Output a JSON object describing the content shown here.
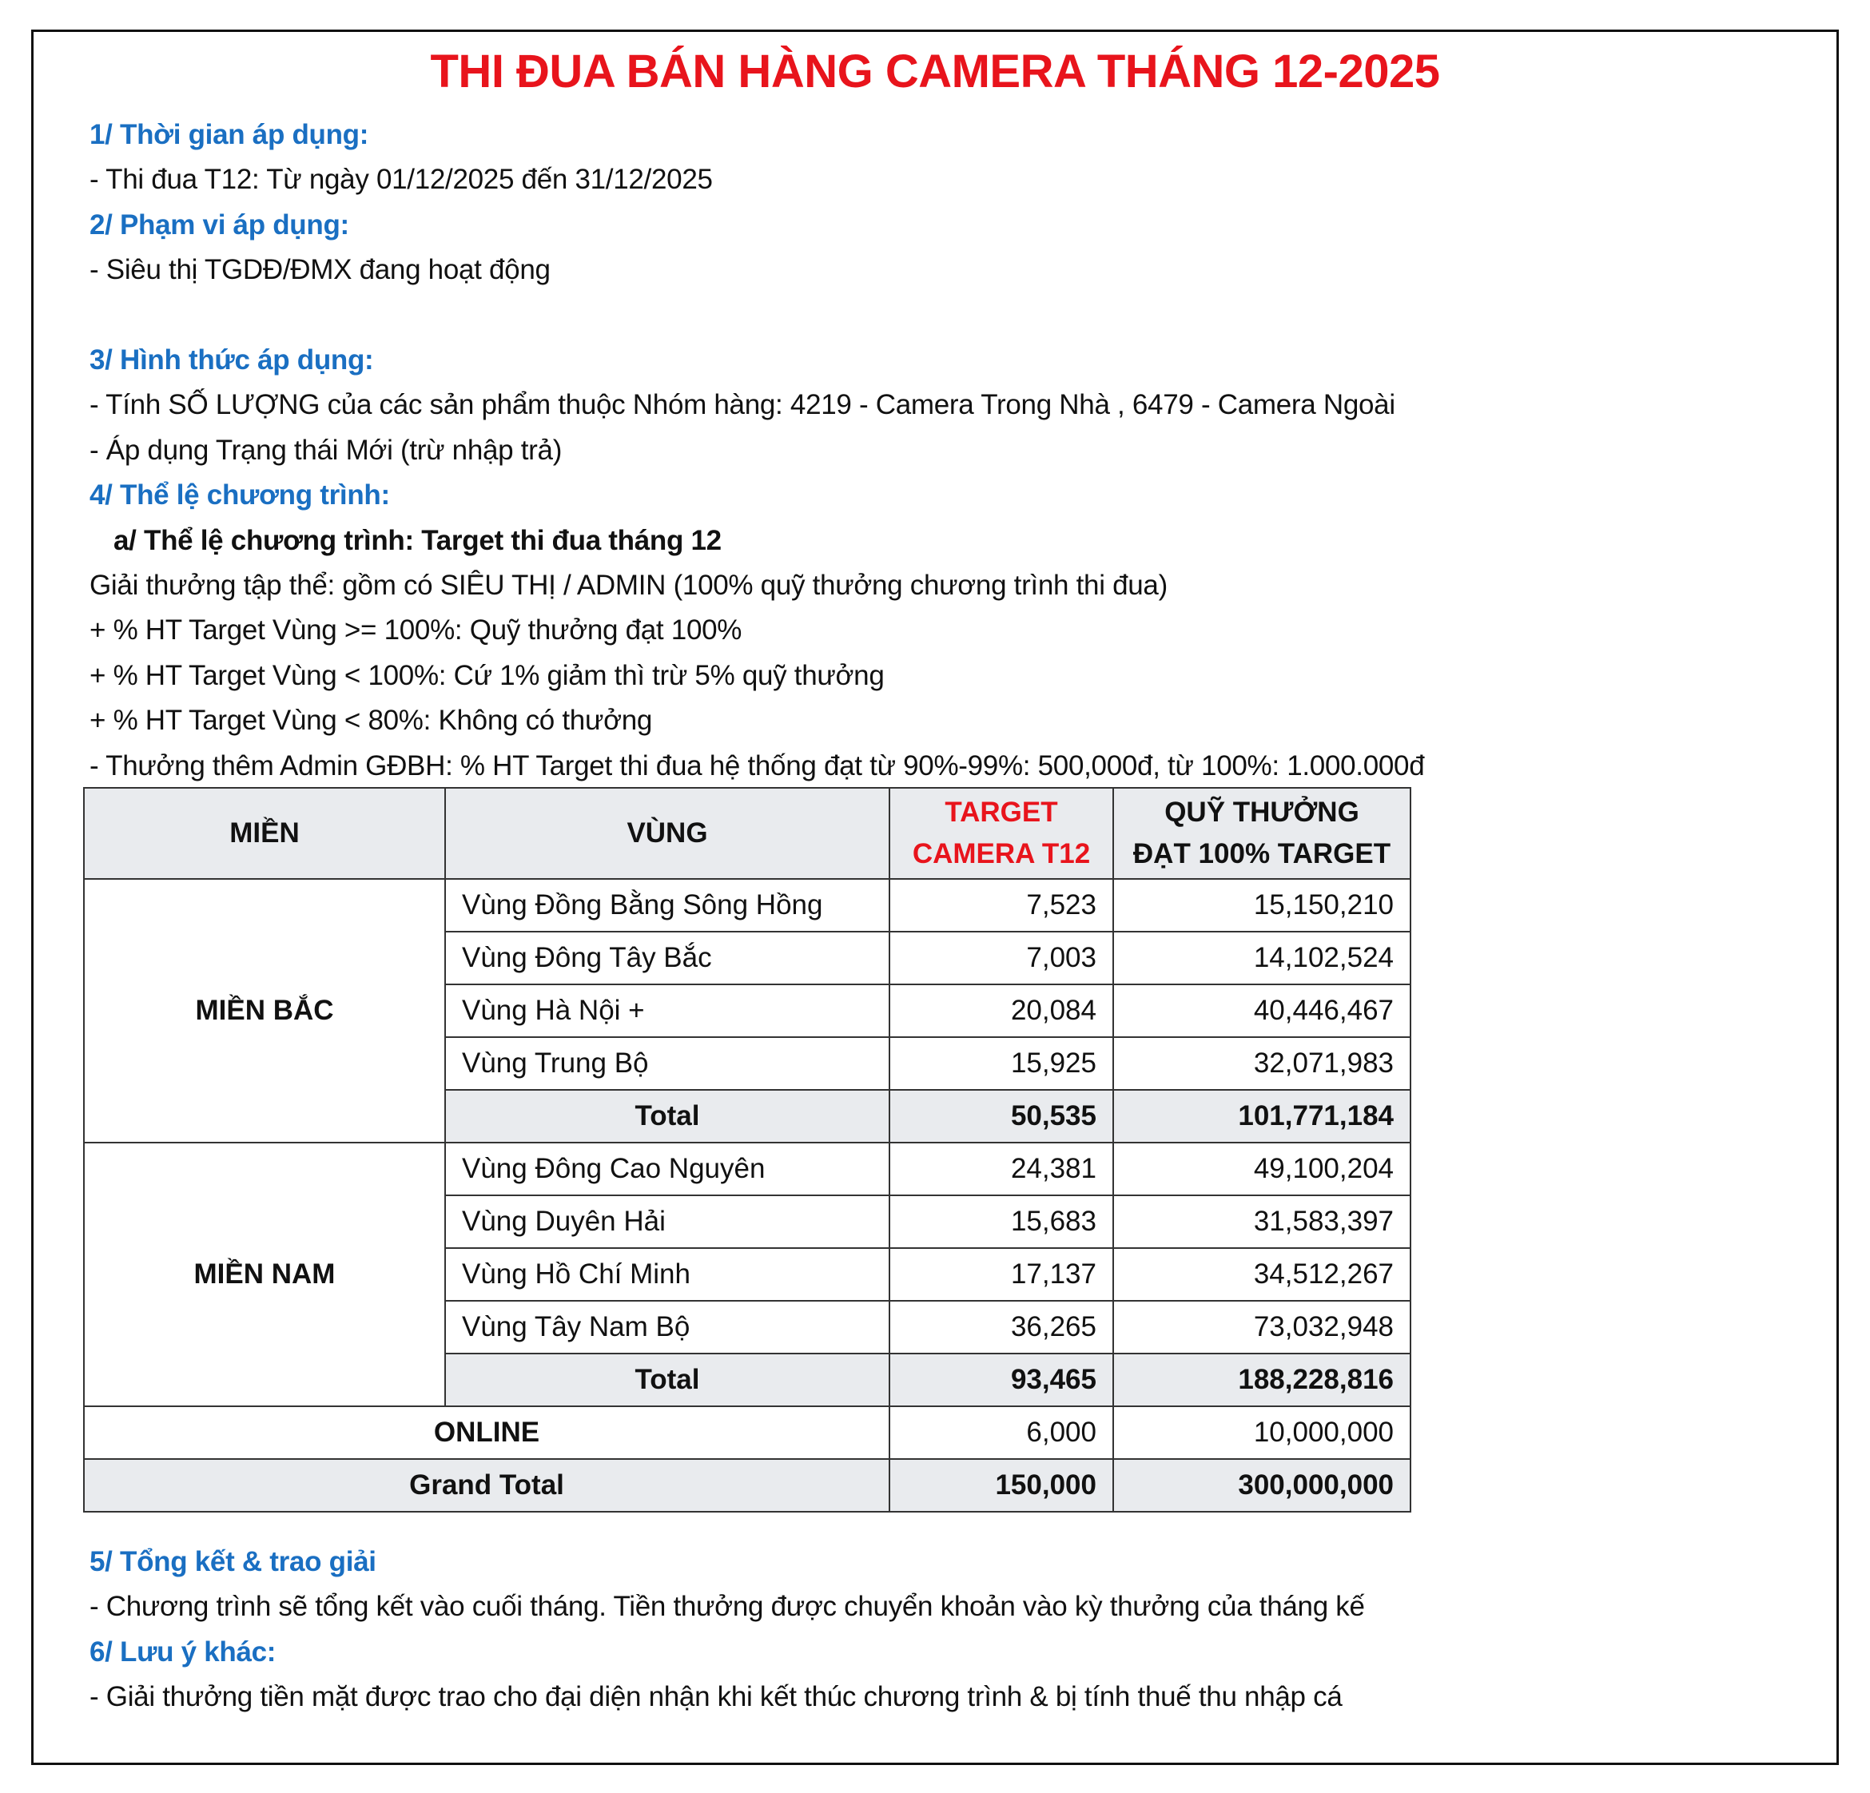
{
  "title": "THI ĐUA BÁN HÀNG CAMERA THÁNG 12-2025",
  "colors": {
    "title": "#e8141c",
    "heading": "#1a6fc2",
    "header_bg": "#e9ebee"
  },
  "top_lines": [
    {
      "type": "heading",
      "text": "1/ Thời gian áp dụng:"
    },
    {
      "type": "text",
      "text": "- Thi đua T12:  Từ ngày 01/12/2025 đến 31/12/2025"
    },
    {
      "type": "heading",
      "text": "2/ Phạm vi áp dụng:"
    },
    {
      "type": "text",
      "text": "- Siêu thị TGDĐ/ĐMX đang hoạt động"
    },
    {
      "type": "heading",
      "text": "3/ Hình thức áp dụng:"
    },
    {
      "type": "text",
      "text": "- Tính SỐ LƯỢNG của các sản phẩm thuộc Nhóm hàng: 4219 - Camera Trong Nhà , 6479 - Camera Ngoài"
    },
    {
      "type": "text",
      "text": "- Áp dụng Trạng thái Mới (trừ nhập trả)"
    },
    {
      "type": "heading",
      "text": "4/ Thể lệ chương trình:"
    },
    {
      "type": "sub",
      "text": "a/ Thể lệ chương trình: Target thi đua tháng 12"
    },
    {
      "type": "text",
      "text": "Giải thưởng tập thể: gồm có SIÊU THỊ / ADMIN (100% quỹ thưởng chương trình thi đua)"
    },
    {
      "type": "text",
      "text": "+ % HT Target Vùng >= 100%:  Quỹ thưởng đạt 100%"
    },
    {
      "type": "text",
      "text": "+ % HT Target Vùng < 100%: Cứ 1% giảm thì trừ 5% quỹ thưởng"
    },
    {
      "type": "text",
      "text": "+ % HT Target Vùng < 80%: Không có thưởng"
    },
    {
      "type": "text",
      "text": "- Thưởng thêm Admin GĐBH: % HT Target thi đua hệ thống đạt từ 90%-99%: 500,000đ, từ 100%: 1.000.000đ"
    }
  ],
  "table": {
    "headers": {
      "mien": "MIỀN",
      "vung": "VÙNG",
      "target_1": "TARGET",
      "target_2": "CAMERA T12",
      "quy_1": "QUỸ THƯỞNG",
      "quy_2": "ĐẠT 100% TARGET"
    },
    "groups": [
      {
        "name": "MIỀN BẮC",
        "rows": [
          {
            "vung": "Vùng Đồng Bằng Sông Hồng",
            "target": "7,523",
            "quy": "15,150,210"
          },
          {
            "vung": "Vùng Đông Tây Bắc",
            "target": "7,003",
            "quy": "14,102,524"
          },
          {
            "vung": "Vùng Hà Nội +",
            "target": "20,084",
            "quy": "40,446,467"
          },
          {
            "vung": "Vùng Trung Bộ",
            "target": "15,925",
            "quy": "32,071,983"
          }
        ],
        "total": {
          "label": "Total",
          "target": "50,535",
          "quy": "101,771,184"
        }
      },
      {
        "name": "MIỀN NAM",
        "rows": [
          {
            "vung": "Vùng Đông Cao Nguyên",
            "target": "24,381",
            "quy": "49,100,204"
          },
          {
            "vung": "Vùng Duyên Hải",
            "target": "15,683",
            "quy": "31,583,397"
          },
          {
            "vung": "Vùng Hồ Chí Minh",
            "target": "17,137",
            "quy": "34,512,267"
          },
          {
            "vung": "Vùng Tây Nam Bộ",
            "target": "36,265",
            "quy": "73,032,948"
          }
        ],
        "total": {
          "label": "Total",
          "target": "93,465",
          "quy": "188,228,816"
        }
      }
    ],
    "online": {
      "label": "ONLINE",
      "target": "6,000",
      "quy": "10,000,000"
    },
    "grand_total": {
      "label": "Grand Total",
      "target": "150,000",
      "quy": "300,000,000"
    }
  },
  "bottom_lines": [
    {
      "type": "heading",
      "text": "5/ Tổng kết & trao giải"
    },
    {
      "type": "text",
      "text": "- Chương trình sẽ tổng kết vào cuối tháng. Tiền thưởng được chuyển khoản vào kỳ thưởng của tháng kế"
    },
    {
      "type": "heading",
      "text": "6/ Lưu ý khác:"
    },
    {
      "type": "text",
      "text": "- Giải thưởng tiền mặt được trao cho đại diện nhận khi kết thúc chương trình & bị tính thuế thu nhập cá"
    }
  ]
}
